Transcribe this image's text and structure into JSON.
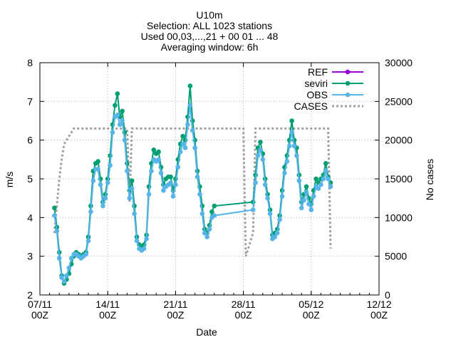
{
  "chart_data": {
    "type": "line",
    "title": [
      "U10m",
      "Selection: ALL   1023 stations",
      "Used 00,03,...,21 + 00 01 ... 48",
      "Averaging window:  6h"
    ],
    "xlabel": "Date",
    "ylabel": "m/s",
    "y2label": "No cases",
    "xlim": [
      "2021-11-07 00:00",
      "2021-12-12 00:00"
    ],
    "ylim": [
      2,
      8
    ],
    "y2lim": [
      0,
      30000
    ],
    "grid": true,
    "legend_position": "top-right",
    "x_ticks": [
      {
        "date": "2021-11-07 00:00",
        "label1": "07/11",
        "label2": "00Z"
      },
      {
        "date": "2021-11-14 00:00",
        "label1": "14/11",
        "label2": "00Z"
      },
      {
        "date": "2021-11-21 00:00",
        "label1": "21/11",
        "label2": "00Z"
      },
      {
        "date": "2021-11-28 00:00",
        "label1": "28/11",
        "label2": "00Z"
      },
      {
        "date": "2021-12-05 00:00",
        "label1": "05/12",
        "label2": "00Z"
      },
      {
        "date": "2021-12-12 00:00",
        "label1": "12/12",
        "label2": "00Z"
      }
    ],
    "y_ticks": [
      2,
      3,
      4,
      5,
      6,
      7,
      8
    ],
    "y2_ticks": [
      0,
      5000,
      10000,
      15000,
      20000,
      25000,
      30000
    ],
    "series": [
      {
        "name": "REF",
        "axis": "y",
        "color": "#9400d3",
        "marker": "circle",
        "points": []
      },
      {
        "name": "seviri",
        "axis": "y",
        "color": "#009e73",
        "marker": "circle",
        "points": [
          [
            "2021-11-08 12:00",
            4.25
          ],
          [
            "2021-11-08 18:00",
            3.75
          ],
          [
            "2021-11-09 00:00",
            3.1
          ],
          [
            "2021-11-09 06:00",
            2.5
          ],
          [
            "2021-11-09 12:00",
            2.3
          ],
          [
            "2021-11-09 18:00",
            2.4
          ],
          [
            "2021-11-10 00:00",
            2.55
          ],
          [
            "2021-11-10 06:00",
            2.8
          ],
          [
            "2021-11-10 12:00",
            3.0
          ],
          [
            "2021-11-10 18:00",
            3.1
          ],
          [
            "2021-11-11 00:00",
            3.05
          ],
          [
            "2021-11-11 06:00",
            3.0
          ],
          [
            "2021-11-11 12:00",
            3.05
          ],
          [
            "2021-11-11 18:00",
            3.1
          ],
          [
            "2021-11-12 00:00",
            3.5
          ],
          [
            "2021-11-12 06:00",
            4.3
          ],
          [
            "2021-11-12 12:00",
            5.2
          ],
          [
            "2021-11-12 18:00",
            5.4
          ],
          [
            "2021-11-13 00:00",
            5.45
          ],
          [
            "2021-11-13 06:00",
            5.0
          ],
          [
            "2021-11-13 12:00",
            4.4
          ],
          [
            "2021-11-13 18:00",
            4.6
          ],
          [
            "2021-11-14 00:00",
            5.0
          ],
          [
            "2021-11-14 06:00",
            5.6
          ],
          [
            "2021-11-14 12:00",
            6.4
          ],
          [
            "2021-11-14 18:00",
            6.9
          ],
          [
            "2021-11-15 00:00",
            7.2
          ],
          [
            "2021-11-15 06:00",
            6.6
          ],
          [
            "2021-11-15 12:00",
            6.75
          ],
          [
            "2021-11-15 18:00",
            6.2
          ],
          [
            "2021-11-16 00:00",
            5.4
          ],
          [
            "2021-11-16 06:00",
            4.7
          ],
          [
            "2021-11-16 12:00",
            4.95
          ],
          [
            "2021-11-16 18:00",
            4.3
          ],
          [
            "2021-11-17 00:00",
            3.5
          ],
          [
            "2021-11-17 06:00",
            3.3
          ],
          [
            "2021-11-17 12:00",
            3.25
          ],
          [
            "2021-11-17 18:00",
            3.3
          ],
          [
            "2021-11-18 00:00",
            3.55
          ],
          [
            "2021-11-18 06:00",
            4.8
          ],
          [
            "2021-11-18 12:00",
            5.4
          ],
          [
            "2021-11-18 18:00",
            5.75
          ],
          [
            "2021-11-19 00:00",
            5.65
          ],
          [
            "2021-11-19 06:00",
            5.7
          ],
          [
            "2021-11-19 12:00",
            5.3
          ],
          [
            "2021-11-19 18:00",
            4.85
          ],
          [
            "2021-11-20 00:00",
            5.0
          ],
          [
            "2021-11-20 06:00",
            5.05
          ],
          [
            "2021-11-20 12:00",
            5.05
          ],
          [
            "2021-11-20 18:00",
            4.7
          ],
          [
            "2021-11-21 00:00",
            5.0
          ],
          [
            "2021-11-21 06:00",
            5.5
          ],
          [
            "2021-11-21 12:00",
            5.9
          ],
          [
            "2021-11-21 18:00",
            6.1
          ],
          [
            "2021-11-22 00:00",
            6.0
          ],
          [
            "2021-11-22 06:00",
            6.6
          ],
          [
            "2021-11-22 12:00",
            7.4
          ],
          [
            "2021-11-22 18:00",
            6.5
          ],
          [
            "2021-11-23 00:00",
            6.0
          ],
          [
            "2021-11-23 06:00",
            5.2
          ],
          [
            "2021-11-23 12:00",
            4.8
          ],
          [
            "2021-11-23 18:00",
            4.3
          ],
          [
            "2021-11-24 00:00",
            3.7
          ],
          [
            "2021-11-24 06:00",
            3.6
          ],
          [
            "2021-11-24 12:00",
            3.8
          ],
          [
            "2021-11-24 18:00",
            4.15
          ],
          [
            "2021-11-25 00:00",
            4.3
          ],
          [
            "2021-11-29 00:00",
            4.4
          ],
          [
            "2021-11-29 06:00",
            5.1
          ],
          [
            "2021-11-29 12:00",
            5.8
          ],
          [
            "2021-11-29 18:00",
            5.95
          ],
          [
            "2021-11-30 00:00",
            5.65
          ],
          [
            "2021-11-30 06:00",
            5.0
          ],
          [
            "2021-11-30 12:00",
            4.6
          ],
          [
            "2021-11-30 18:00",
            4.2
          ],
          [
            "2021-12-01 00:00",
            3.55
          ],
          [
            "2021-12-01 06:00",
            3.6
          ],
          [
            "2021-12-01 12:00",
            3.7
          ],
          [
            "2021-12-01 18:00",
            4.05
          ],
          [
            "2021-12-02 00:00",
            4.7
          ],
          [
            "2021-12-02 06:00",
            5.3
          ],
          [
            "2021-12-02 12:00",
            5.6
          ],
          [
            "2021-12-02 18:00",
            6.0
          ],
          [
            "2021-12-03 00:00",
            6.5
          ],
          [
            "2021-12-03 06:00",
            6.0
          ],
          [
            "2021-12-03 12:00",
            5.8
          ],
          [
            "2021-12-03 18:00",
            5.1
          ],
          [
            "2021-12-04 00:00",
            4.4
          ],
          [
            "2021-12-04 06:00",
            4.6
          ],
          [
            "2021-12-04 12:00",
            4.8
          ],
          [
            "2021-12-04 18:00",
            4.5
          ],
          [
            "2021-12-05 00:00",
            4.35
          ],
          [
            "2021-12-05 06:00",
            4.7
          ],
          [
            "2021-12-05 12:00",
            5.0
          ],
          [
            "2021-12-05 18:00",
            4.9
          ],
          [
            "2021-12-06 00:00",
            5.0
          ],
          [
            "2021-12-06 06:00",
            5.1
          ],
          [
            "2021-12-06 12:00",
            5.4
          ],
          [
            "2021-12-06 18:00",
            5.05
          ],
          [
            "2021-12-07 00:00",
            4.9
          ]
        ]
      },
      {
        "name": "OBS",
        "axis": "y",
        "color": "#56b4e9",
        "marker": "circle",
        "points": [
          [
            "2021-11-08 12:00",
            4.05
          ],
          [
            "2021-11-08 18:00",
            3.65
          ],
          [
            "2021-11-09 00:00",
            2.95
          ],
          [
            "2021-11-09 06:00",
            2.45
          ],
          [
            "2021-11-09 12:00",
            2.35
          ],
          [
            "2021-11-09 18:00",
            2.5
          ],
          [
            "2021-11-10 00:00",
            2.7
          ],
          [
            "2021-11-10 06:00",
            2.95
          ],
          [
            "2021-11-10 12:00",
            3.05
          ],
          [
            "2021-11-10 18:00",
            3.05
          ],
          [
            "2021-11-11 00:00",
            3.0
          ],
          [
            "2021-11-11 06:00",
            2.95
          ],
          [
            "2021-11-11 12:00",
            3.0
          ],
          [
            "2021-11-11 18:00",
            3.05
          ],
          [
            "2021-11-12 00:00",
            3.4
          ],
          [
            "2021-11-12 06:00",
            4.15
          ],
          [
            "2021-11-12 12:00",
            4.95
          ],
          [
            "2021-11-12 18:00",
            5.25
          ],
          [
            "2021-11-13 00:00",
            5.25
          ],
          [
            "2021-11-13 06:00",
            4.85
          ],
          [
            "2021-11-13 12:00",
            4.3
          ],
          [
            "2021-11-13 18:00",
            4.5
          ],
          [
            "2021-11-14 00:00",
            4.9
          ],
          [
            "2021-11-14 06:00",
            5.35
          ],
          [
            "2021-11-14 12:00",
            6.2
          ],
          [
            "2021-11-14 18:00",
            6.6
          ],
          [
            "2021-11-15 00:00",
            6.65
          ],
          [
            "2021-11-15 06:00",
            6.4
          ],
          [
            "2021-11-15 12:00",
            6.5
          ],
          [
            "2021-11-15 18:00",
            6.0
          ],
          [
            "2021-11-16 00:00",
            5.2
          ],
          [
            "2021-11-16 06:00",
            4.5
          ],
          [
            "2021-11-16 12:00",
            4.75
          ],
          [
            "2021-11-16 18:00",
            4.1
          ],
          [
            "2021-11-17 00:00",
            3.4
          ],
          [
            "2021-11-17 06:00",
            3.2
          ],
          [
            "2021-11-17 12:00",
            3.15
          ],
          [
            "2021-11-17 18:00",
            3.2
          ],
          [
            "2021-11-18 00:00",
            3.45
          ],
          [
            "2021-11-18 06:00",
            4.6
          ],
          [
            "2021-11-18 12:00",
            5.2
          ],
          [
            "2021-11-18 18:00",
            5.5
          ],
          [
            "2021-11-19 00:00",
            5.45
          ],
          [
            "2021-11-19 06:00",
            5.5
          ],
          [
            "2021-11-19 12:00",
            5.15
          ],
          [
            "2021-11-19 18:00",
            4.7
          ],
          [
            "2021-11-20 00:00",
            4.8
          ],
          [
            "2021-11-20 06:00",
            4.85
          ],
          [
            "2021-11-20 12:00",
            4.9
          ],
          [
            "2021-11-20 18:00",
            4.55
          ],
          [
            "2021-11-21 00:00",
            4.85
          ],
          [
            "2021-11-21 06:00",
            5.3
          ],
          [
            "2021-11-21 12:00",
            5.7
          ],
          [
            "2021-11-21 18:00",
            5.9
          ],
          [
            "2021-11-22 00:00",
            5.8
          ],
          [
            "2021-11-22 06:00",
            6.4
          ],
          [
            "2021-11-22 12:00",
            6.9
          ],
          [
            "2021-11-22 18:00",
            6.25
          ],
          [
            "2021-11-23 00:00",
            5.8
          ],
          [
            "2021-11-23 06:00",
            5.05
          ],
          [
            "2021-11-23 12:00",
            4.6
          ],
          [
            "2021-11-23 18:00",
            4.1
          ],
          [
            "2021-11-24 00:00",
            3.6
          ],
          [
            "2021-11-24 06:00",
            3.5
          ],
          [
            "2021-11-24 12:00",
            3.7
          ],
          [
            "2021-11-24 18:00",
            4.0
          ],
          [
            "2021-11-25 00:00",
            4.05
          ],
          [
            "2021-11-29 00:00",
            4.2
          ],
          [
            "2021-11-29 06:00",
            4.9
          ],
          [
            "2021-11-29 12:00",
            5.6
          ],
          [
            "2021-11-29 18:00",
            5.75
          ],
          [
            "2021-11-30 00:00",
            5.5
          ],
          [
            "2021-11-30 06:00",
            4.85
          ],
          [
            "2021-11-30 12:00",
            4.5
          ],
          [
            "2021-11-30 18:00",
            4.1
          ],
          [
            "2021-12-01 00:00",
            3.45
          ],
          [
            "2021-12-01 06:00",
            3.5
          ],
          [
            "2021-12-01 12:00",
            3.6
          ],
          [
            "2021-12-01 18:00",
            3.95
          ],
          [
            "2021-12-02 00:00",
            4.55
          ],
          [
            "2021-12-02 06:00",
            5.15
          ],
          [
            "2021-12-02 12:00",
            5.45
          ],
          [
            "2021-12-02 18:00",
            5.85
          ],
          [
            "2021-12-03 00:00",
            6.2
          ],
          [
            "2021-12-03 06:00",
            5.85
          ],
          [
            "2021-12-03 12:00",
            5.6
          ],
          [
            "2021-12-03 18:00",
            4.95
          ],
          [
            "2021-12-04 00:00",
            4.25
          ],
          [
            "2021-12-04 06:00",
            4.45
          ],
          [
            "2021-12-04 12:00",
            4.65
          ],
          [
            "2021-12-04 18:00",
            4.35
          ],
          [
            "2021-12-05 00:00",
            4.2
          ],
          [
            "2021-12-05 06:00",
            4.55
          ],
          [
            "2021-12-05 12:00",
            4.8
          ],
          [
            "2021-12-05 18:00",
            4.75
          ],
          [
            "2021-12-06 00:00",
            4.85
          ],
          [
            "2021-12-06 06:00",
            5.0
          ],
          [
            "2021-12-06 12:00",
            5.2
          ],
          [
            "2021-12-06 18:00",
            5.0
          ],
          [
            "2021-12-07 00:00",
            4.8
          ]
        ]
      },
      {
        "name": "CASES",
        "axis": "y2",
        "color": "#a0a0a0",
        "marker": "none",
        "style": "dashed",
        "points": [
          [
            "2021-11-08 12:00",
            8000
          ],
          [
            "2021-11-09 00:00",
            15000
          ],
          [
            "2021-11-09 06:00",
            17500
          ],
          [
            "2021-11-09 12:00",
            19500
          ],
          [
            "2021-11-10 00:00",
            20500
          ],
          [
            "2021-11-10 12:00",
            21500
          ],
          [
            "2021-11-11 00:00",
            21500
          ],
          [
            "2021-11-12 00:00",
            21500
          ],
          [
            "2021-11-13 00:00",
            21500
          ],
          [
            "2021-11-14 00:00",
            21500
          ],
          [
            "2021-11-15 00:00",
            21500
          ],
          [
            "2021-11-16 00:00",
            21500
          ],
          [
            "2021-11-16 06:00",
            12000
          ],
          [
            "2021-11-16 12:00",
            21500
          ],
          [
            "2021-11-17 00:00",
            21500
          ],
          [
            "2021-11-18 00:00",
            21500
          ],
          [
            "2021-11-19 00:00",
            21500
          ],
          [
            "2021-11-20 00:00",
            21500
          ],
          [
            "2021-11-21 00:00",
            21500
          ],
          [
            "2021-11-22 00:00",
            21500
          ],
          [
            "2021-11-23 00:00",
            21500
          ],
          [
            "2021-11-24 00:00",
            21500
          ],
          [
            "2021-11-25 00:00",
            21500
          ],
          [
            "2021-11-28 00:00",
            21500
          ],
          [
            "2021-11-28 06:00",
            5000
          ],
          [
            "2021-11-29 00:00",
            8000
          ],
          [
            "2021-11-29 06:00",
            21500
          ],
          [
            "2021-11-30 00:00",
            21500
          ],
          [
            "2021-12-01 00:00",
            21500
          ],
          [
            "2021-12-02 00:00",
            21500
          ],
          [
            "2021-12-03 00:00",
            21500
          ],
          [
            "2021-12-04 00:00",
            21500
          ],
          [
            "2021-12-05 00:00",
            21500
          ],
          [
            "2021-12-06 00:00",
            21500
          ],
          [
            "2021-12-06 18:00",
            21500
          ],
          [
            "2021-12-07 00:00",
            6000
          ]
        ]
      }
    ]
  }
}
